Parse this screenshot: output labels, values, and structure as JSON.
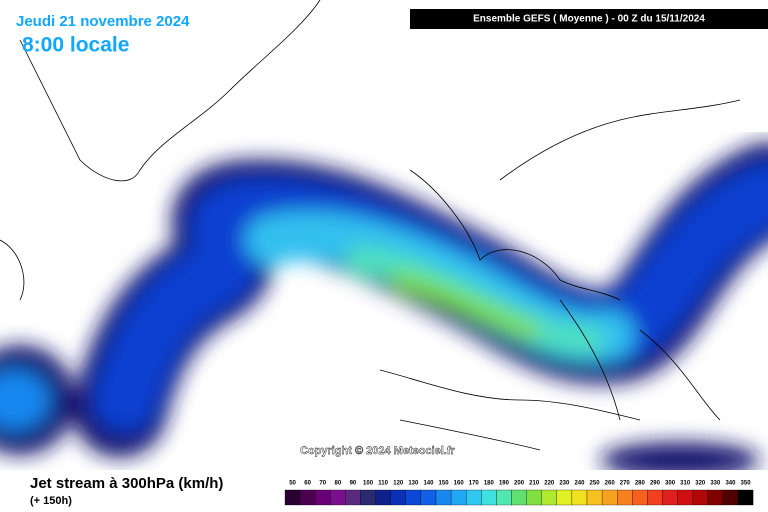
{
  "header": {
    "date": "Jeudi 21 novembre 2024",
    "time": "8:00 locale",
    "model": "Ensemble GEFS  ( Moyenne )  -  00 Z du 15/11/2024"
  },
  "map": {
    "copyright": "Copyright © 2024 Meteociel.fr"
  },
  "footer": {
    "title": "Jet stream à 300hPa (km/h)",
    "lead": "(+ 150h)"
  },
  "scale": {
    "labels": [
      50,
      60,
      70,
      80,
      90,
      100,
      110,
      120,
      130,
      140,
      150,
      160,
      170,
      180,
      190,
      200,
      210,
      220,
      230,
      240,
      250,
      260,
      270,
      280,
      290,
      300,
      310,
      320,
      330,
      340,
      350
    ],
    "colors": [
      "#2a0030",
      "#4b0050",
      "#6a0078",
      "#7a1090",
      "#5a2a80",
      "#2a2a70",
      "#10208a",
      "#0a30b8",
      "#0a48d8",
      "#1060e8",
      "#1888f0",
      "#20a8f4",
      "#30c8f0",
      "#40e0e0",
      "#50e8b0",
      "#60e070",
      "#80e040",
      "#b0e830",
      "#e0f020",
      "#f0e020",
      "#f8c020",
      "#f8a020",
      "#f88020",
      "#f86020",
      "#f04020",
      "#e02020",
      "#d01010",
      "#b00808",
      "#800000",
      "#500000",
      "#000000"
    ]
  }
}
